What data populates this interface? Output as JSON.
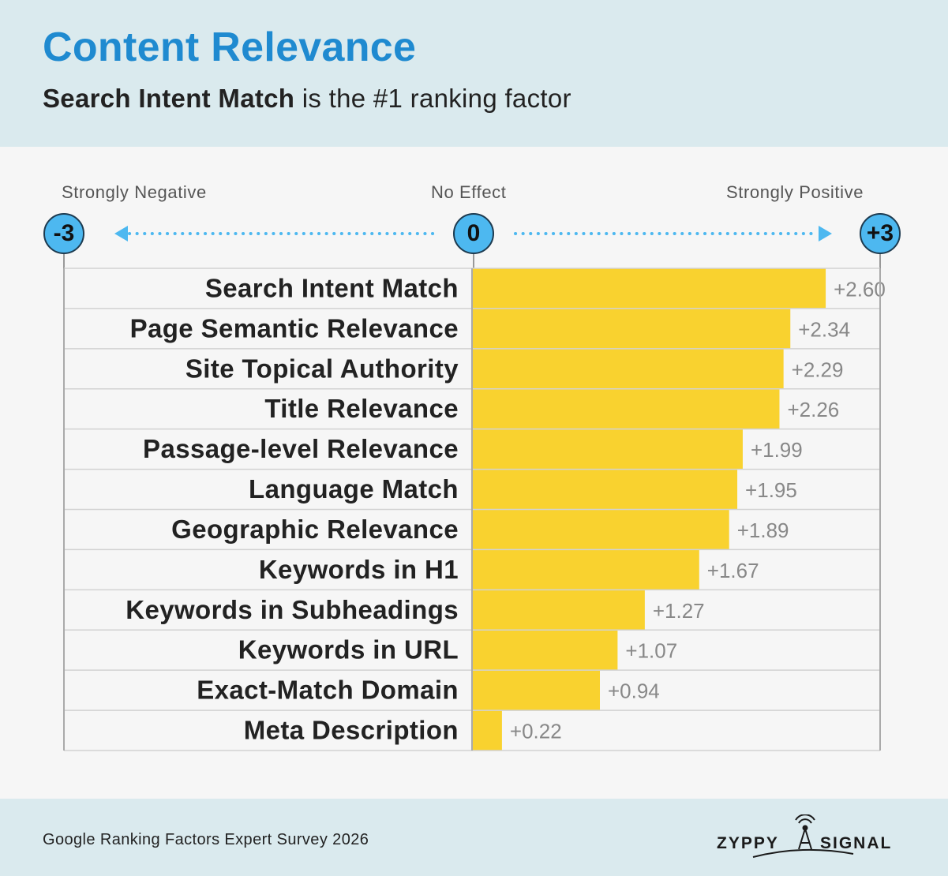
{
  "header": {
    "title": "Content Relevance",
    "subtitle_bold": "Search Intent Match",
    "subtitle_rest": " is the #1 ranking factor"
  },
  "scale": {
    "left_label": "Strongly Negative",
    "center_label": "No Effect",
    "right_label": "Strongly Positive",
    "left_value": "-3",
    "center_value": "0",
    "right_value": "+3"
  },
  "chart_data": {
    "type": "bar",
    "orientation": "horizontal",
    "categories": [
      "Search Intent Match",
      "Page Semantic Relevance",
      "Site Topical Authority",
      "Title Relevance",
      "Passage-level Relevance",
      "Language Match",
      "Geographic Relevance",
      "Keywords in H1",
      "Keywords in Subheadings",
      "Keywords in URL",
      "Exact-Match Domain",
      "Meta Description"
    ],
    "values": [
      2.6,
      2.34,
      2.29,
      2.26,
      1.99,
      1.95,
      1.89,
      1.67,
      1.27,
      1.07,
      0.94,
      0.22
    ],
    "value_labels": [
      "+2.60",
      "+2.34",
      "+2.29",
      "+2.26",
      "+1.99",
      "+1.95",
      "+1.89",
      "+1.67",
      "+1.27",
      "+1.07",
      "+0.94",
      "+0.22"
    ],
    "xlim": [
      -3,
      3
    ],
    "bar_color": "#f9d22f",
    "grid": true
  },
  "footer": {
    "source": "Google Ranking Factors Expert Survey 2026",
    "logo_left": "ZYPPY",
    "logo_right": "SIGNAL"
  },
  "colors": {
    "title": "#1f8ad0",
    "header_bg": "#daeaee",
    "circle": "#4db8f0",
    "arrow": "#4db8f0"
  }
}
